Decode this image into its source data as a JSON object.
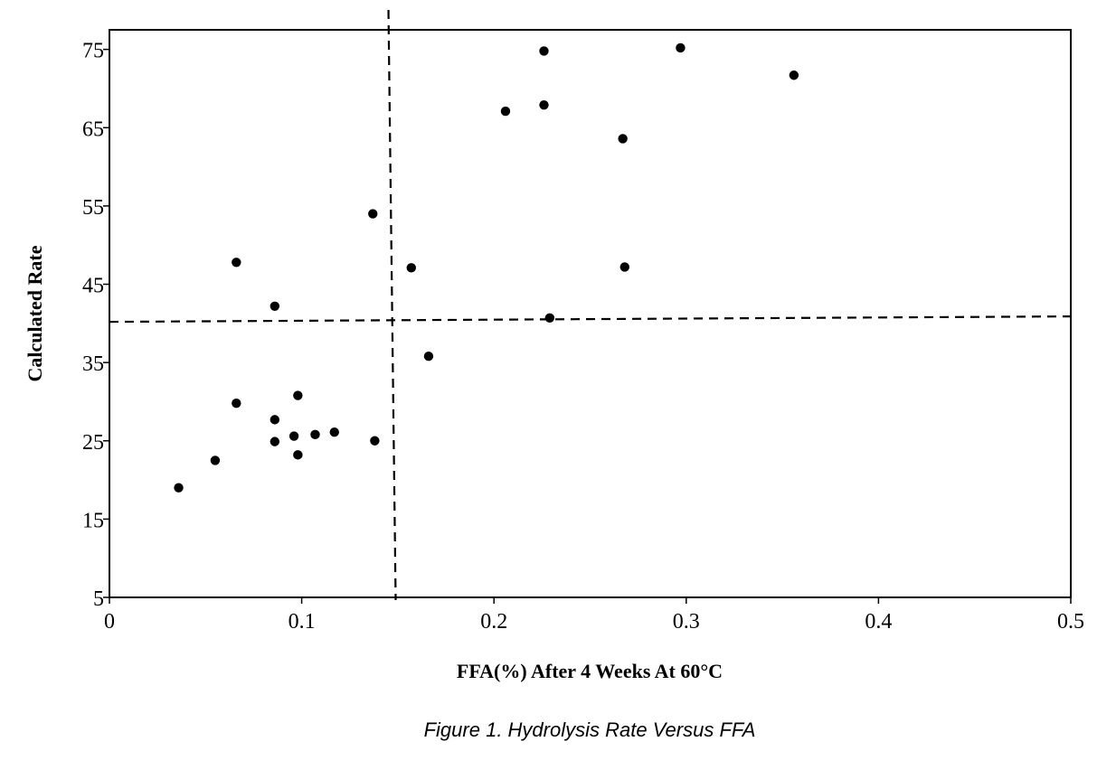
{
  "chart_data": {
    "type": "scatter",
    "title": "",
    "caption": "Figure 1. Hydrolysis  Rate Versus FFA",
    "xlabel": "FFA(%) After 4 Weeks At 60°C",
    "ylabel": "Calculated Rate",
    "xlim": [
      0,
      0.5
    ],
    "ylim": [
      5,
      75
    ],
    "xticks": [
      0,
      0.1,
      0.2,
      0.3,
      0.4,
      0.5
    ],
    "xtick_labels": [
      "0",
      "0.1",
      "0.2",
      "0.3",
      "0.4",
      "0.5"
    ],
    "yticks": [
      5,
      15,
      25,
      35,
      45,
      55,
      65,
      75
    ],
    "ytick_labels": [
      "5",
      "15",
      "25",
      "35",
      "45",
      "55",
      "65",
      "75"
    ],
    "grid": false,
    "legend": "none",
    "reference_lines": [
      {
        "axis": "x",
        "value": 0.147,
        "style": "dashed"
      },
      {
        "axis": "y",
        "value": 40.2,
        "style": "dashed"
      }
    ],
    "points": [
      {
        "x": 0.036,
        "y": 19
      },
      {
        "x": 0.055,
        "y": 22.5
      },
      {
        "x": 0.066,
        "y": 47.8
      },
      {
        "x": 0.066,
        "y": 29.8
      },
      {
        "x": 0.086,
        "y": 42.2
      },
      {
        "x": 0.086,
        "y": 27.7
      },
      {
        "x": 0.086,
        "y": 24.9
      },
      {
        "x": 0.096,
        "y": 25.6
      },
      {
        "x": 0.098,
        "y": 30.8
      },
      {
        "x": 0.098,
        "y": 23.2
      },
      {
        "x": 0.107,
        "y": 25.8
      },
      {
        "x": 0.117,
        "y": 26.1
      },
      {
        "x": 0.137,
        "y": 54
      },
      {
        "x": 0.138,
        "y": 25
      },
      {
        "x": 0.157,
        "y": 47.1
      },
      {
        "x": 0.166,
        "y": 35.8
      },
      {
        "x": 0.206,
        "y": 67.1
      },
      {
        "x": 0.226,
        "y": 74.8
      },
      {
        "x": 0.226,
        "y": 67.9
      },
      {
        "x": 0.229,
        "y": 40.7
      },
      {
        "x": 0.267,
        "y": 63.6
      },
      {
        "x": 0.268,
        "y": 47.2
      },
      {
        "x": 0.297,
        "y": 75.2
      },
      {
        "x": 0.356,
        "y": 71.7
      }
    ]
  }
}
